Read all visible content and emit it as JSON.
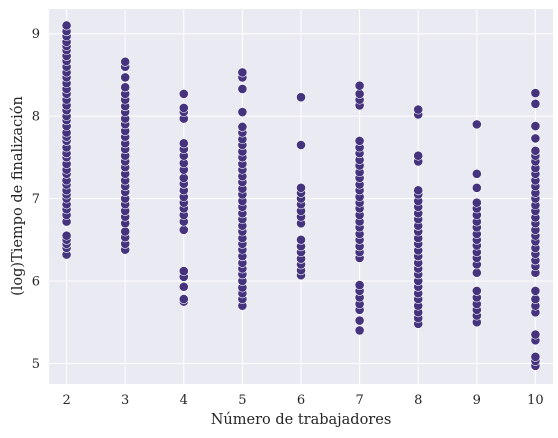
{
  "chart_data": {
    "type": "scatter",
    "title": "",
    "xlabel": "Número de trabajadores",
    "ylabel": "(log)Tiempo de finalización",
    "xlim": [
      1.7,
      10.3
    ],
    "ylim": [
      4.75,
      9.3
    ],
    "x_ticks": [
      2,
      3,
      4,
      5,
      6,
      7,
      8,
      9,
      10
    ],
    "y_ticks": [
      5,
      6,
      7,
      8,
      9
    ],
    "grid": true,
    "style": {
      "background": "#EAEAF2",
      "grid_color": "#FFFFFF",
      "marker_color": "#45337D",
      "marker_edge": "#FFFFFF"
    },
    "series": [
      {
        "points": [
          [
            2,
            6.32
          ],
          [
            2,
            6.4
          ],
          [
            2,
            6.45
          ],
          [
            2,
            6.5
          ],
          [
            2,
            6.55
          ],
          [
            2,
            6.72
          ],
          [
            2,
            6.8
          ],
          [
            2,
            6.87
          ],
          [
            2,
            6.93
          ],
          [
            2,
            7.0
          ],
          [
            2,
            7.05
          ],
          [
            2,
            7.1
          ],
          [
            2,
            7.17
          ],
          [
            2,
            7.22
          ],
          [
            2,
            7.3
          ],
          [
            2,
            7.35
          ],
          [
            2,
            7.42
          ],
          [
            2,
            7.5
          ],
          [
            2,
            7.55
          ],
          [
            2,
            7.62
          ],
          [
            2,
            7.7
          ],
          [
            2,
            7.75
          ],
          [
            2,
            7.8
          ],
          [
            2,
            7.88
          ],
          [
            2,
            7.95
          ],
          [
            2,
            8.0
          ],
          [
            2,
            8.07
          ],
          [
            2,
            8.13
          ],
          [
            2,
            8.2
          ],
          [
            2,
            8.27
          ],
          [
            2,
            8.33
          ],
          [
            2,
            8.4
          ],
          [
            2,
            8.47
          ],
          [
            2,
            8.53
          ],
          [
            2,
            8.6
          ],
          [
            2,
            8.67
          ],
          [
            2,
            8.73
          ],
          [
            2,
            8.8
          ],
          [
            2,
            8.85
          ],
          [
            2,
            8.9
          ],
          [
            2,
            8.97
          ],
          [
            2,
            9.03
          ],
          [
            2,
            9.1
          ],
          [
            3,
            6.38
          ],
          [
            3,
            6.45
          ],
          [
            3,
            6.53
          ],
          [
            3,
            6.6
          ],
          [
            3,
            6.7
          ],
          [
            3,
            6.78
          ],
          [
            3,
            6.85
          ],
          [
            3,
            6.93
          ],
          [
            3,
            7.0
          ],
          [
            3,
            7.08
          ],
          [
            3,
            7.15
          ],
          [
            3,
            7.22
          ],
          [
            3,
            7.3
          ],
          [
            3,
            7.38
          ],
          [
            3,
            7.45
          ],
          [
            3,
            7.52
          ],
          [
            3,
            7.6
          ],
          [
            3,
            7.67
          ],
          [
            3,
            7.75
          ],
          [
            3,
            7.82
          ],
          [
            3,
            7.9
          ],
          [
            3,
            7.97
          ],
          [
            3,
            8.05
          ],
          [
            3,
            8.12
          ],
          [
            3,
            8.2
          ],
          [
            3,
            8.27
          ],
          [
            3,
            8.35
          ],
          [
            3,
            8.47
          ],
          [
            3,
            8.6
          ],
          [
            3,
            8.66
          ],
          [
            4,
            5.75
          ],
          [
            4,
            5.78
          ],
          [
            4,
            5.93
          ],
          [
            4,
            6.05
          ],
          [
            4,
            6.12
          ],
          [
            4,
            6.62
          ],
          [
            4,
            6.72
          ],
          [
            4,
            6.8
          ],
          [
            4,
            6.88
          ],
          [
            4,
            6.95
          ],
          [
            4,
            7.02
          ],
          [
            4,
            7.1
          ],
          [
            4,
            7.18
          ],
          [
            4,
            7.25
          ],
          [
            4,
            7.35
          ],
          [
            4,
            7.43
          ],
          [
            4,
            7.52
          ],
          [
            4,
            7.6
          ],
          [
            4,
            7.67
          ],
          [
            4,
            7.97
          ],
          [
            4,
            8.05
          ],
          [
            4,
            8.1
          ],
          [
            4,
            8.27
          ],
          [
            5,
            5.7
          ],
          [
            5,
            5.78
          ],
          [
            5,
            5.85
          ],
          [
            5,
            5.92
          ],
          [
            5,
            6.0
          ],
          [
            5,
            6.08
          ],
          [
            5,
            6.15
          ],
          [
            5,
            6.22
          ],
          [
            5,
            6.3
          ],
          [
            5,
            6.38
          ],
          [
            5,
            6.45
          ],
          [
            5,
            6.52
          ],
          [
            5,
            6.6
          ],
          [
            5,
            6.67
          ],
          [
            5,
            6.75
          ],
          [
            5,
            6.82
          ],
          [
            5,
            6.9
          ],
          [
            5,
            6.97
          ],
          [
            5,
            7.05
          ],
          [
            5,
            7.12
          ],
          [
            5,
            7.2
          ],
          [
            5,
            7.27
          ],
          [
            5,
            7.35
          ],
          [
            5,
            7.42
          ],
          [
            5,
            7.5
          ],
          [
            5,
            7.57
          ],
          [
            5,
            7.65
          ],
          [
            5,
            7.72
          ],
          [
            5,
            7.8
          ],
          [
            5,
            7.87
          ],
          [
            5,
            8.05
          ],
          [
            5,
            8.33
          ],
          [
            5,
            8.47
          ],
          [
            5,
            8.53
          ],
          [
            6,
            6.07
          ],
          [
            6,
            6.13
          ],
          [
            6,
            6.2
          ],
          [
            6,
            6.27
          ],
          [
            6,
            6.35
          ],
          [
            6,
            6.42
          ],
          [
            6,
            6.5
          ],
          [
            6,
            6.7
          ],
          [
            6,
            6.78
          ],
          [
            6,
            6.85
          ],
          [
            6,
            6.93
          ],
          [
            6,
            7.0
          ],
          [
            6,
            7.07
          ],
          [
            6,
            7.13
          ],
          [
            6,
            7.65
          ],
          [
            6,
            8.23
          ],
          [
            7,
            5.4
          ],
          [
            7,
            5.52
          ],
          [
            7,
            5.65
          ],
          [
            7,
            5.72
          ],
          [
            7,
            5.8
          ],
          [
            7,
            5.88
          ],
          [
            7,
            5.95
          ],
          [
            7,
            6.28
          ],
          [
            7,
            6.35
          ],
          [
            7,
            6.42
          ],
          [
            7,
            6.5
          ],
          [
            7,
            6.57
          ],
          [
            7,
            6.65
          ],
          [
            7,
            6.72
          ],
          [
            7,
            6.8
          ],
          [
            7,
            6.88
          ],
          [
            7,
            6.95
          ],
          [
            7,
            7.02
          ],
          [
            7,
            7.1
          ],
          [
            7,
            7.17
          ],
          [
            7,
            7.25
          ],
          [
            7,
            7.32
          ],
          [
            7,
            7.4
          ],
          [
            7,
            7.47
          ],
          [
            7,
            7.55
          ],
          [
            7,
            7.62
          ],
          [
            7,
            7.7
          ],
          [
            7,
            8.13
          ],
          [
            7,
            8.2
          ],
          [
            7,
            8.27
          ],
          [
            7,
            8.37
          ],
          [
            8,
            5.48
          ],
          [
            8,
            5.55
          ],
          [
            8,
            5.62
          ],
          [
            8,
            5.7
          ],
          [
            8,
            5.78
          ],
          [
            8,
            5.85
          ],
          [
            8,
            5.93
          ],
          [
            8,
            6.0
          ],
          [
            8,
            6.08
          ],
          [
            8,
            6.15
          ],
          [
            8,
            6.22
          ],
          [
            8,
            6.3
          ],
          [
            8,
            6.37
          ],
          [
            8,
            6.45
          ],
          [
            8,
            6.52
          ],
          [
            8,
            6.6
          ],
          [
            8,
            6.67
          ],
          [
            8,
            6.75
          ],
          [
            8,
            6.82
          ],
          [
            8,
            6.9
          ],
          [
            8,
            6.97
          ],
          [
            8,
            7.05
          ],
          [
            8,
            7.1
          ],
          [
            8,
            7.45
          ],
          [
            8,
            7.52
          ],
          [
            8,
            8.02
          ],
          [
            8,
            8.08
          ],
          [
            9,
            5.5
          ],
          [
            9,
            5.58
          ],
          [
            9,
            5.65
          ],
          [
            9,
            5.72
          ],
          [
            9,
            5.8
          ],
          [
            9,
            5.88
          ],
          [
            9,
            6.1
          ],
          [
            9,
            6.2
          ],
          [
            9,
            6.28
          ],
          [
            9,
            6.35
          ],
          [
            9,
            6.43
          ],
          [
            9,
            6.5
          ],
          [
            9,
            6.57
          ],
          [
            9,
            6.65
          ],
          [
            9,
            6.72
          ],
          [
            9,
            6.8
          ],
          [
            9,
            6.88
          ],
          [
            9,
            6.95
          ],
          [
            9,
            7.13
          ],
          [
            9,
            7.3
          ],
          [
            9,
            7.9
          ],
          [
            10,
            4.97
          ],
          [
            10,
            5.03
          ],
          [
            10,
            5.08
          ],
          [
            10,
            5.28
          ],
          [
            10,
            5.35
          ],
          [
            10,
            5.62
          ],
          [
            10,
            5.7
          ],
          [
            10,
            5.78
          ],
          [
            10,
            5.88
          ],
          [
            10,
            6.1
          ],
          [
            10,
            6.18
          ],
          [
            10,
            6.25
          ],
          [
            10,
            6.33
          ],
          [
            10,
            6.4
          ],
          [
            10,
            6.48
          ],
          [
            10,
            6.55
          ],
          [
            10,
            6.62
          ],
          [
            10,
            6.7
          ],
          [
            10,
            6.77
          ],
          [
            10,
            6.85
          ],
          [
            10,
            6.92
          ],
          [
            10,
            7.0
          ],
          [
            10,
            7.07
          ],
          [
            10,
            7.15
          ],
          [
            10,
            7.22
          ],
          [
            10,
            7.3
          ],
          [
            10,
            7.37
          ],
          [
            10,
            7.45
          ],
          [
            10,
            7.52
          ],
          [
            10,
            7.58
          ],
          [
            10,
            7.73
          ],
          [
            10,
            7.88
          ],
          [
            10,
            8.15
          ],
          [
            10,
            8.28
          ]
        ]
      }
    ]
  }
}
